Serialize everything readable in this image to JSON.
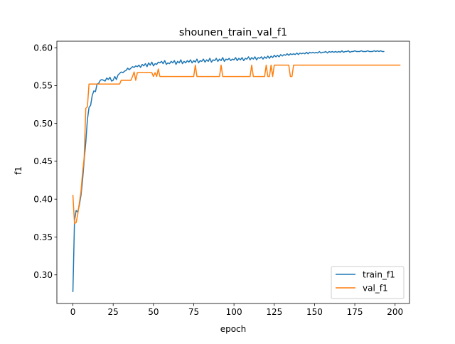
{
  "chart_data": {
    "type": "line",
    "title": "shounen_train_val_f1",
    "xlabel": "epoch",
    "ylabel": "f1",
    "xlim": [
      -9.95,
      208.95
    ],
    "ylim": [
      0.2622,
      0.6086
    ],
    "x_ticks": [
      0,
      25,
      50,
      75,
      100,
      125,
      150,
      175,
      200
    ],
    "y_ticks": [
      0.3,
      0.35,
      0.4,
      0.45,
      0.5,
      0.55,
      0.6
    ],
    "x_tick_labels": [
      "0",
      "25",
      "50",
      "75",
      "100",
      "125",
      "150",
      "175",
      "200"
    ],
    "y_tick_labels": [
      "0.30",
      "0.35",
      "0.40",
      "0.45",
      "0.50",
      "0.55",
      "0.60"
    ],
    "grid": false,
    "legend_position": "lower right",
    "x_start": 0,
    "x_step": 1,
    "series": [
      {
        "name": "train_f1",
        "color": "#1f77b4",
        "values": [
          0.278,
          0.372,
          0.385,
          0.383,
          0.392,
          0.405,
          0.425,
          0.452,
          0.475,
          0.505,
          0.521,
          0.524,
          0.537,
          0.543,
          0.542,
          0.552,
          0.553,
          0.557,
          0.558,
          0.557,
          0.556,
          0.56,
          0.558,
          0.561,
          0.556,
          0.557,
          0.562,
          0.558,
          0.564,
          0.566,
          0.568,
          0.567,
          0.569,
          0.57,
          0.573,
          0.571,
          0.573,
          0.575,
          0.574,
          0.576,
          0.575,
          0.577,
          0.574,
          0.578,
          0.576,
          0.579,
          0.575,
          0.58,
          0.577,
          0.581,
          0.576,
          0.579,
          0.578,
          0.581,
          0.58,
          0.582,
          0.579,
          0.583,
          0.578,
          0.58,
          0.579,
          0.582,
          0.58,
          0.583,
          0.578,
          0.582,
          0.58,
          0.584,
          0.579,
          0.582,
          0.58,
          0.583,
          0.581,
          0.584,
          0.58,
          0.583,
          0.581,
          0.585,
          0.58,
          0.583,
          0.582,
          0.585,
          0.581,
          0.584,
          0.582,
          0.586,
          0.581,
          0.584,
          0.583,
          0.586,
          0.582,
          0.585,
          0.583,
          0.587,
          0.582,
          0.585,
          0.584,
          0.586,
          0.583,
          0.585,
          0.584,
          0.587,
          0.583,
          0.586,
          0.584,
          0.587,
          0.583,
          0.586,
          0.585,
          0.588,
          0.584,
          0.587,
          0.585,
          0.588,
          0.584,
          0.587,
          0.586,
          0.588,
          0.585,
          0.588,
          0.586,
          0.589,
          0.586,
          0.589,
          0.587,
          0.59,
          0.588,
          0.59,
          0.588,
          0.591,
          0.589,
          0.591,
          0.59,
          0.592,
          0.59,
          0.592,
          0.591,
          0.592,
          0.591,
          0.593,
          0.591,
          0.593,
          0.592,
          0.593,
          0.592,
          0.594,
          0.592,
          0.594,
          0.593,
          0.594,
          0.593,
          0.594,
          0.593,
          0.595,
          0.593,
          0.594,
          0.594,
          0.595,
          0.593,
          0.595,
          0.594,
          0.595,
          0.594,
          0.595,
          0.594,
          0.595,
          0.594,
          0.596,
          0.594,
          0.595,
          0.595,
          0.596,
          0.594,
          0.595,
          0.595,
          0.596,
          0.595,
          0.595,
          0.595,
          0.596,
          0.595,
          0.595,
          0.595,
          0.596,
          0.595,
          0.595,
          0.595,
          0.596,
          0.595,
          0.596,
          0.595,
          0.596,
          0.595,
          0.595
        ]
      },
      {
        "name": "val_f1",
        "color": "#ff7f0e",
        "values": [
          0.405,
          0.368,
          0.369,
          0.38,
          0.395,
          0.41,
          0.435,
          0.455,
          0.52,
          0.522,
          0.552,
          0.552,
          0.552,
          0.552,
          0.552,
          0.552,
          0.552,
          0.552,
          0.552,
          0.552,
          0.552,
          0.552,
          0.552,
          0.552,
          0.552,
          0.552,
          0.552,
          0.552,
          0.552,
          0.552,
          0.557,
          0.557,
          0.557,
          0.557,
          0.557,
          0.557,
          0.557,
          0.562,
          0.568,
          0.557,
          0.567,
          0.567,
          0.567,
          0.567,
          0.567,
          0.567,
          0.567,
          0.567,
          0.567,
          0.567,
          0.562,
          0.567,
          0.562,
          0.572,
          0.562,
          0.562,
          0.562,
          0.562,
          0.562,
          0.562,
          0.562,
          0.562,
          0.562,
          0.562,
          0.562,
          0.562,
          0.562,
          0.562,
          0.562,
          0.562,
          0.562,
          0.562,
          0.562,
          0.562,
          0.562,
          0.562,
          0.577,
          0.562,
          0.562,
          0.562,
          0.562,
          0.562,
          0.562,
          0.562,
          0.562,
          0.562,
          0.562,
          0.562,
          0.562,
          0.562,
          0.562,
          0.562,
          0.577,
          0.562,
          0.562,
          0.562,
          0.562,
          0.562,
          0.562,
          0.562,
          0.562,
          0.562,
          0.562,
          0.562,
          0.562,
          0.562,
          0.562,
          0.562,
          0.562,
          0.562,
          0.562,
          0.577,
          0.562,
          0.562,
          0.562,
          0.562,
          0.562,
          0.562,
          0.562,
          0.562,
          0.577,
          0.562,
          0.562,
          0.577,
          0.562,
          0.577,
          0.577,
          0.577,
          0.577,
          0.577,
          0.577,
          0.577,
          0.577,
          0.577,
          0.577,
          0.562,
          0.562,
          0.577,
          0.577,
          0.577,
          0.577,
          0.577,
          0.577,
          0.577,
          0.577,
          0.577,
          0.577,
          0.577,
          0.577,
          0.577,
          0.577,
          0.577,
          0.577,
          0.577,
          0.577,
          0.577,
          0.577,
          0.577,
          0.577,
          0.577,
          0.577,
          0.577,
          0.577,
          0.577,
          0.577,
          0.577,
          0.577,
          0.577,
          0.577,
          0.577,
          0.577,
          0.577,
          0.577,
          0.577,
          0.577,
          0.577,
          0.577,
          0.577,
          0.577,
          0.577,
          0.577,
          0.577,
          0.577,
          0.577,
          0.577,
          0.577,
          0.577,
          0.577,
          0.577,
          0.577,
          0.577,
          0.577,
          0.577,
          0.577,
          0.577,
          0.577,
          0.577,
          0.577,
          0.577,
          0.577,
          0.577,
          0.577,
          0.577,
          0.577
        ]
      }
    ]
  }
}
